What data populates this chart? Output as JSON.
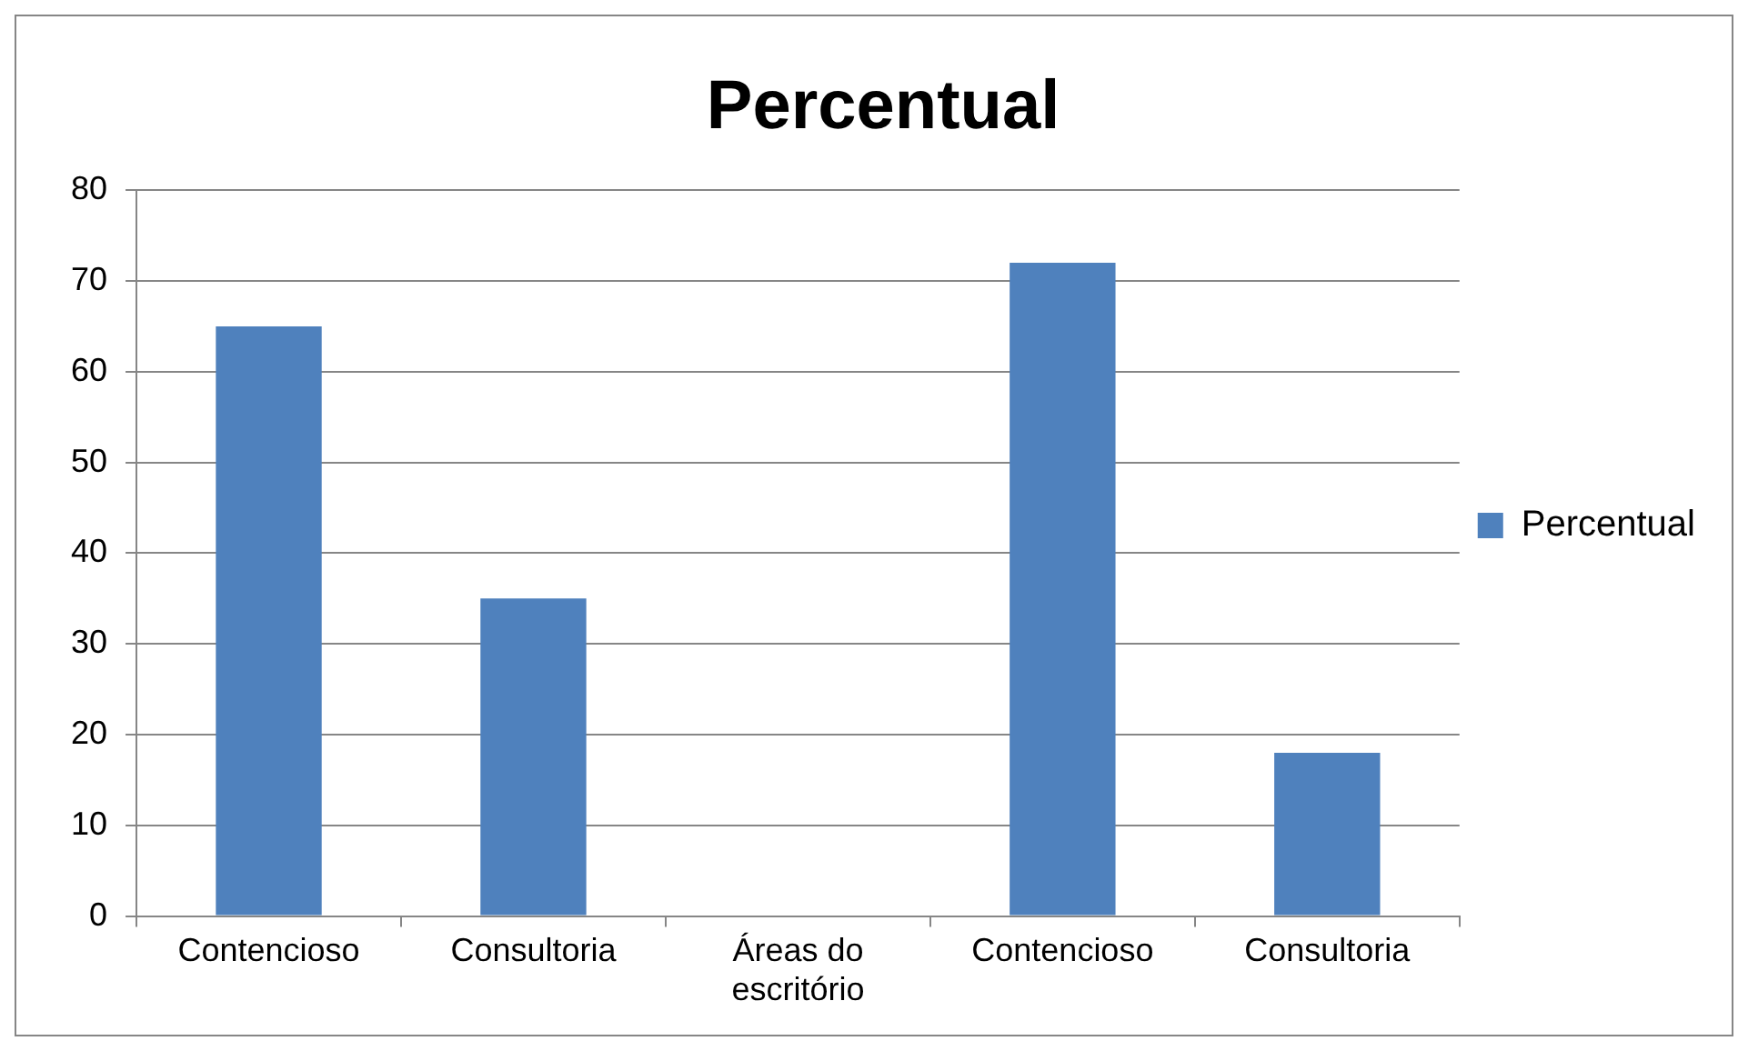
{
  "chart_data": {
    "type": "bar",
    "title": "Percentual",
    "categories": [
      "Contencioso",
      "Consultoria",
      "Áreas do escritório",
      "Contencioso",
      "Consultoria"
    ],
    "series": [
      {
        "name": "Percentual",
        "color": "#4f81bd",
        "values": [
          65,
          35,
          null,
          72,
          18
        ]
      }
    ],
    "ylim": [
      0,
      80
    ],
    "yticks": [
      0,
      10,
      20,
      30,
      40,
      50,
      60,
      70,
      80
    ],
    "grid": "y",
    "legend": "right"
  }
}
